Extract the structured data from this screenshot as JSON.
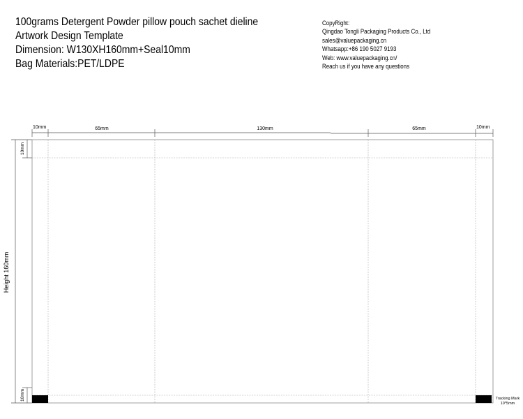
{
  "header": {
    "lines": [
      "100grams Detergent Powder pillow pouch sachet dieline",
      "Artwork Design Template",
      "Dimension: W130XH160mm+Seal10mm",
      "Bag Materials:PET/LDPE"
    ]
  },
  "contact": {
    "lines": [
      "CopyRight:",
      "Qingdao Tongli Packaging Products Co., Ltd",
      "sales@valuepackaging.cn",
      "Whatsapp:+86 190 5027 9193",
      "Web: www.valuepackaging.cn/",
      "Reach us if you have any questions"
    ]
  },
  "dimensions": {
    "top": [
      "10mm",
      "65mm",
      "130mm",
      "65mm",
      "10mm"
    ],
    "left_top_seal": "10mm",
    "left_bottom_seal": "10mm",
    "height": "Height  160mm"
  },
  "tracking_mark": {
    "label": "Tracking Mark",
    "size": "10*5mm",
    "color": "#000000"
  }
}
